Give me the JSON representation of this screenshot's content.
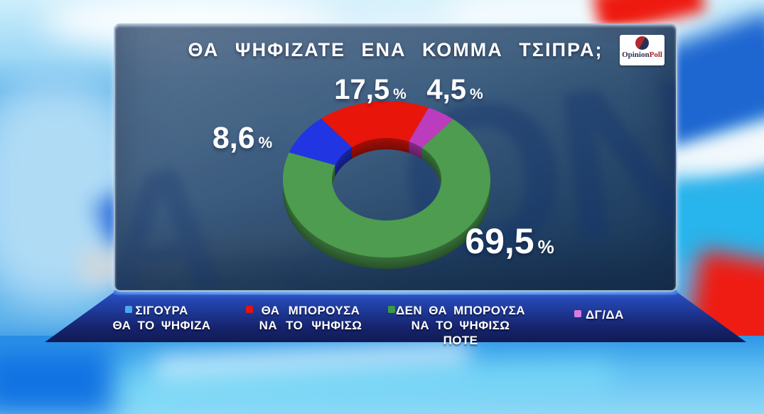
{
  "header": {
    "title": "ΘΑ ΨΗΦΙΖΑΤΕ ΕΝΑ ΚΟΜΜΑ ΤΣΙΠΡΑ;"
  },
  "logo": {
    "brand_part1": "Opinion",
    "brand_part2": "Poll",
    "colors": {
      "left_red": "#b5282e",
      "right_navy": "#273055"
    }
  },
  "chart_data": {
    "type": "pie",
    "subtype": "3d-donut",
    "title": "ΘΑ ΨΗΦΙΖΑΤΕ ΕΝΑ ΚΟΜΜΑ ΤΣΙΠΡΑ;",
    "unit": "%",
    "start_angle_deg": 290,
    "legend_position": "bottom",
    "segments": [
      {
        "label": "ΣΙΓΟΥΡΑ ΘΑ ΤΟ ΨΗΦΙΖΑ",
        "value": 8.6,
        "display": "8,6",
        "color": "#2135e2"
      },
      {
        "label": "ΘΑ ΜΠΟΡΟΥΣΑ ΝΑ ΤΟ ΨΗΦΙΣΩ",
        "value": 17.5,
        "display": "17,5",
        "color": "#e8150a"
      },
      {
        "label": "ΔΓ/ΔΑ",
        "value": 4.5,
        "display": "4,5",
        "color": "#bb3cbc"
      },
      {
        "label": "ΔΕΝ ΘΑ ΜΠΟΡΟΥΣΑ ΝΑ ΤΟ ΨΗΦΙΣΩ ΠΟΤΕ",
        "value": 69.5,
        "display": "69,5",
        "color": "#4d9c4f"
      }
    ]
  },
  "legend": {
    "items": [
      {
        "line1": "ΣΙΓΟΥΡΑ",
        "line2": "ΘΑ ΤΟ ΨΗΦΙΖΑ",
        "color": "#4aa9ec"
      },
      {
        "line1": "ΘΑ ΜΠΟΡΟΥΣΑ",
        "line2": "ΝΑ ΤΟ ΨΗΦΙΣΩ",
        "color": "#e3150e"
      },
      {
        "line1": "ΔΕΝ ΘΑ ΜΠΟΡΟΥΣΑ",
        "line2": "ΝΑ ΤΟ ΨΗΦΙΣΩ ΠΟΤΕ",
        "color": "#3c9b40"
      },
      {
        "line1": "ΔΓ/ΔΑ",
        "line2": "",
        "color": "#db7ade"
      }
    ]
  }
}
